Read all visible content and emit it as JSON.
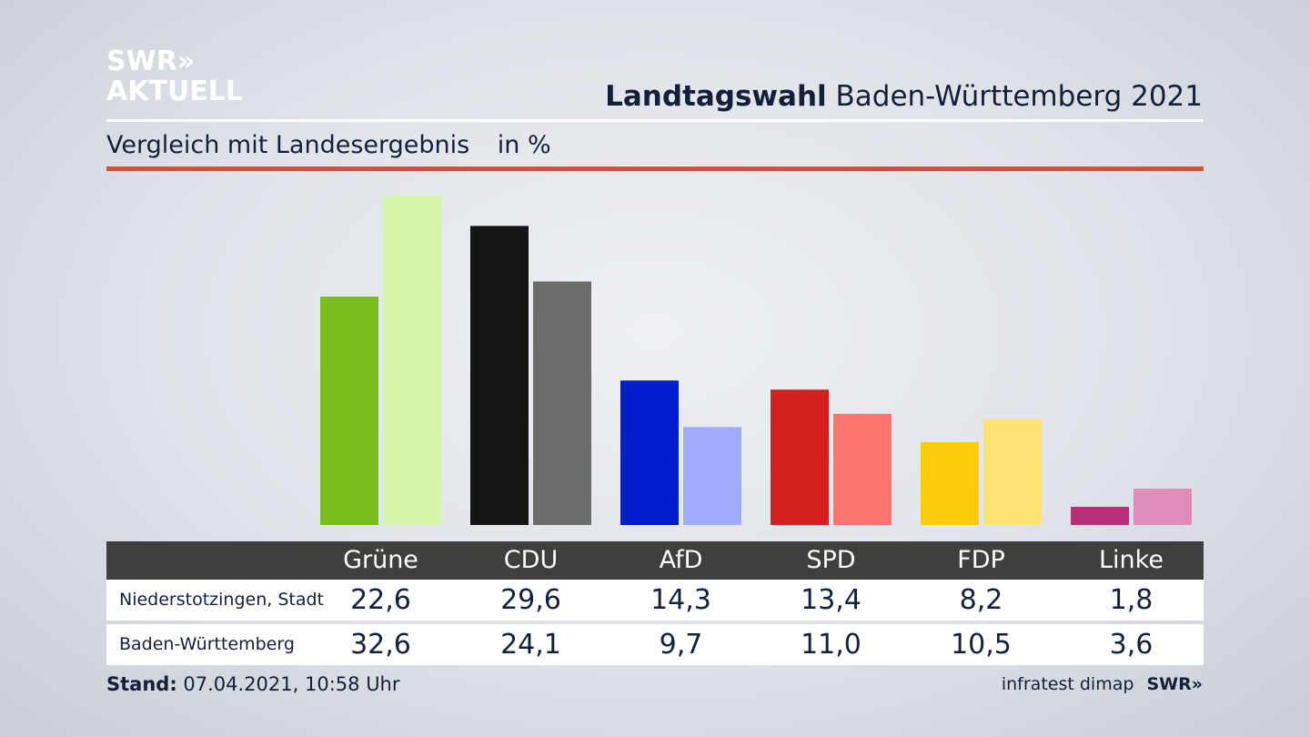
{
  "logo": {
    "line1": "SWR",
    "arrows": "»",
    "line2": "AKTUELL"
  },
  "title": {
    "bold": "Landtagswahl",
    "rest": "Baden-Württemberg 2021"
  },
  "subtitle": {
    "text": "Vergleich mit Landesergebnis",
    "unit": "in %"
  },
  "chart_data": {
    "type": "bar",
    "categories": [
      "Grüne",
      "CDU",
      "AfD",
      "SPD",
      "FDP",
      "Linke"
    ],
    "series": [
      {
        "name": "Niederstotzingen, Stadt",
        "values": [
          22.6,
          29.6,
          14.3,
          13.4,
          8.2,
          1.8
        ]
      },
      {
        "name": "Baden-Württemberg",
        "values": [
          32.6,
          24.1,
          9.7,
          11.0,
          10.5,
          3.6
        ]
      }
    ],
    "value_labels": [
      [
        "22,6",
        "29,6",
        "14,3",
        "13,4",
        "8,2",
        "1,8"
      ],
      [
        "32,6",
        "24,1",
        "9,7",
        "11,0",
        "10,5",
        "3,6"
      ]
    ],
    "colors": [
      [
        "#7abd1e",
        "#d5f5a8"
      ],
      [
        "#141414",
        "#6e6c6a"
      ],
      [
        "#001ecb",
        "#9fabff"
      ],
      [
        "#d41f1f",
        "#ff7670"
      ],
      [
        "#fecb0a",
        "#ffe276"
      ],
      [
        "#b9307a",
        "#e08bb9"
      ]
    ],
    "ylim": [
      0,
      32.6
    ],
    "grid": false,
    "legend": "table-below"
  },
  "footer": {
    "stand_label": "Stand:",
    "stand_value": "07.04.2021, 10:58 Uhr",
    "source": "infratest dimap",
    "source_logo": "SWR»"
  }
}
